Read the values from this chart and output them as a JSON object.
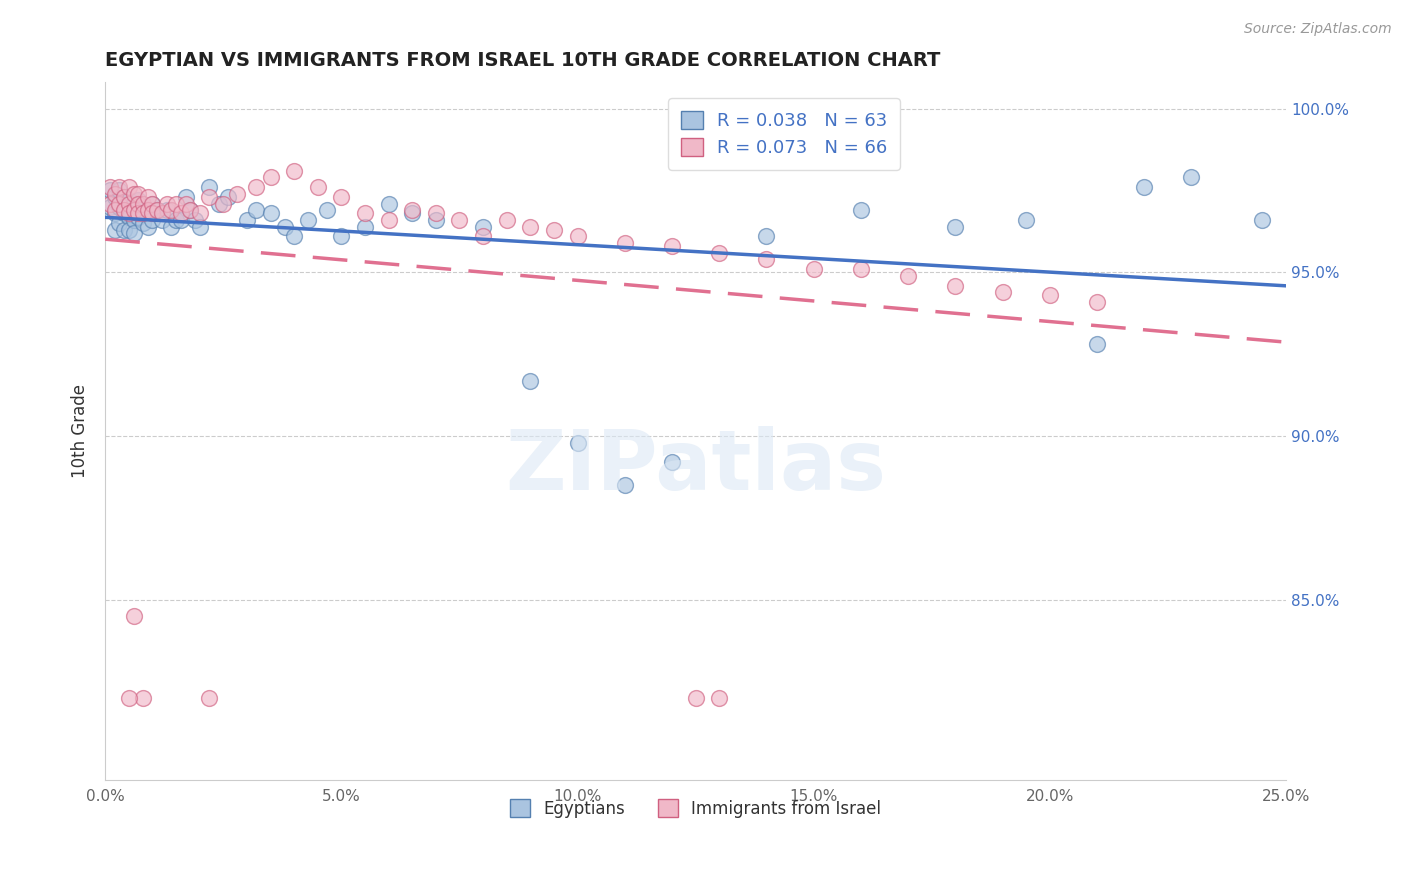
{
  "title": "EGYPTIAN VS IMMIGRANTS FROM ISRAEL 10TH GRADE CORRELATION CHART",
  "source_text": "Source: ZipAtlas.com",
  "ylabel": "10th Grade",
  "x_min": 0.0,
  "x_max": 0.25,
  "y_min": 0.795,
  "y_max": 1.008,
  "x_ticks": [
    0.0,
    0.05,
    0.1,
    0.15,
    0.2,
    0.25
  ],
  "x_tick_labels": [
    "0.0%",
    "5.0%",
    "10.0%",
    "15.0%",
    "20.0%",
    "25.0%"
  ],
  "y_ticks": [
    0.85,
    0.9,
    0.95,
    1.0
  ],
  "y_tick_labels": [
    "85.0%",
    "90.0%",
    "95.0%",
    "100.0%"
  ],
  "blue_color": "#aac4e0",
  "pink_color": "#f0b8c8",
  "blue_edge_color": "#5580b0",
  "pink_edge_color": "#d06080",
  "blue_line_color": "#4472c4",
  "pink_line_color": "#e07090",
  "blue_R": 0.038,
  "blue_N": 63,
  "pink_R": 0.073,
  "pink_N": 66,
  "legend_label_blue": "Egyptians",
  "legend_label_pink": "Immigrants from Israel",
  "watermark": "ZIPatlas",
  "blue_x": [
    0.001,
    0.001,
    0.002,
    0.002,
    0.002,
    0.003,
    0.003,
    0.003,
    0.004,
    0.004,
    0.004,
    0.005,
    0.005,
    0.005,
    0.006,
    0.006,
    0.006,
    0.007,
    0.007,
    0.008,
    0.008,
    0.009,
    0.009,
    0.01,
    0.01,
    0.011,
    0.012,
    0.013,
    0.014,
    0.015,
    0.016,
    0.017,
    0.018,
    0.019,
    0.02,
    0.022,
    0.024,
    0.026,
    0.03,
    0.032,
    0.035,
    0.038,
    0.04,
    0.043,
    0.047,
    0.05,
    0.055,
    0.06,
    0.065,
    0.07,
    0.08,
    0.09,
    0.1,
    0.11,
    0.12,
    0.14,
    0.16,
    0.18,
    0.195,
    0.21,
    0.22,
    0.23,
    0.245
  ],
  "blue_y": [
    0.975,
    0.97,
    0.973,
    0.968,
    0.963,
    0.975,
    0.97,
    0.965,
    0.973,
    0.968,
    0.963,
    0.972,
    0.967,
    0.963,
    0.971,
    0.966,
    0.962,
    0.972,
    0.967,
    0.97,
    0.965,
    0.969,
    0.964,
    0.971,
    0.966,
    0.969,
    0.966,
    0.969,
    0.964,
    0.966,
    0.966,
    0.973,
    0.969,
    0.966,
    0.964,
    0.976,
    0.971,
    0.973,
    0.966,
    0.969,
    0.968,
    0.964,
    0.961,
    0.966,
    0.969,
    0.961,
    0.964,
    0.971,
    0.968,
    0.966,
    0.964,
    0.917,
    0.898,
    0.885,
    0.892,
    0.961,
    0.969,
    0.964,
    0.966,
    0.928,
    0.976,
    0.979,
    0.966
  ],
  "pink_x": [
    0.001,
    0.001,
    0.002,
    0.002,
    0.003,
    0.003,
    0.004,
    0.004,
    0.005,
    0.005,
    0.005,
    0.006,
    0.006,
    0.007,
    0.007,
    0.007,
    0.008,
    0.008,
    0.009,
    0.009,
    0.01,
    0.01,
    0.011,
    0.012,
    0.013,
    0.014,
    0.015,
    0.016,
    0.017,
    0.018,
    0.02,
    0.022,
    0.025,
    0.028,
    0.032,
    0.035,
    0.04,
    0.045,
    0.05,
    0.055,
    0.06,
    0.065,
    0.07,
    0.075,
    0.08,
    0.085,
    0.09,
    0.095,
    0.1,
    0.11,
    0.12,
    0.13,
    0.14,
    0.15,
    0.16,
    0.17,
    0.18,
    0.19,
    0.2,
    0.21,
    0.13,
    0.125,
    0.022,
    0.008,
    0.005,
    0.006
  ],
  "pink_y": [
    0.976,
    0.971,
    0.974,
    0.969,
    0.976,
    0.971,
    0.973,
    0.969,
    0.976,
    0.971,
    0.968,
    0.974,
    0.969,
    0.974,
    0.971,
    0.968,
    0.971,
    0.968,
    0.973,
    0.969,
    0.971,
    0.968,
    0.969,
    0.968,
    0.971,
    0.969,
    0.971,
    0.968,
    0.971,
    0.969,
    0.968,
    0.973,
    0.971,
    0.974,
    0.976,
    0.979,
    0.981,
    0.976,
    0.973,
    0.968,
    0.966,
    0.969,
    0.968,
    0.966,
    0.961,
    0.966,
    0.964,
    0.963,
    0.961,
    0.959,
    0.958,
    0.956,
    0.954,
    0.951,
    0.951,
    0.949,
    0.946,
    0.944,
    0.943,
    0.941,
    0.82,
    0.82,
    0.82,
    0.82,
    0.82,
    0.845
  ]
}
